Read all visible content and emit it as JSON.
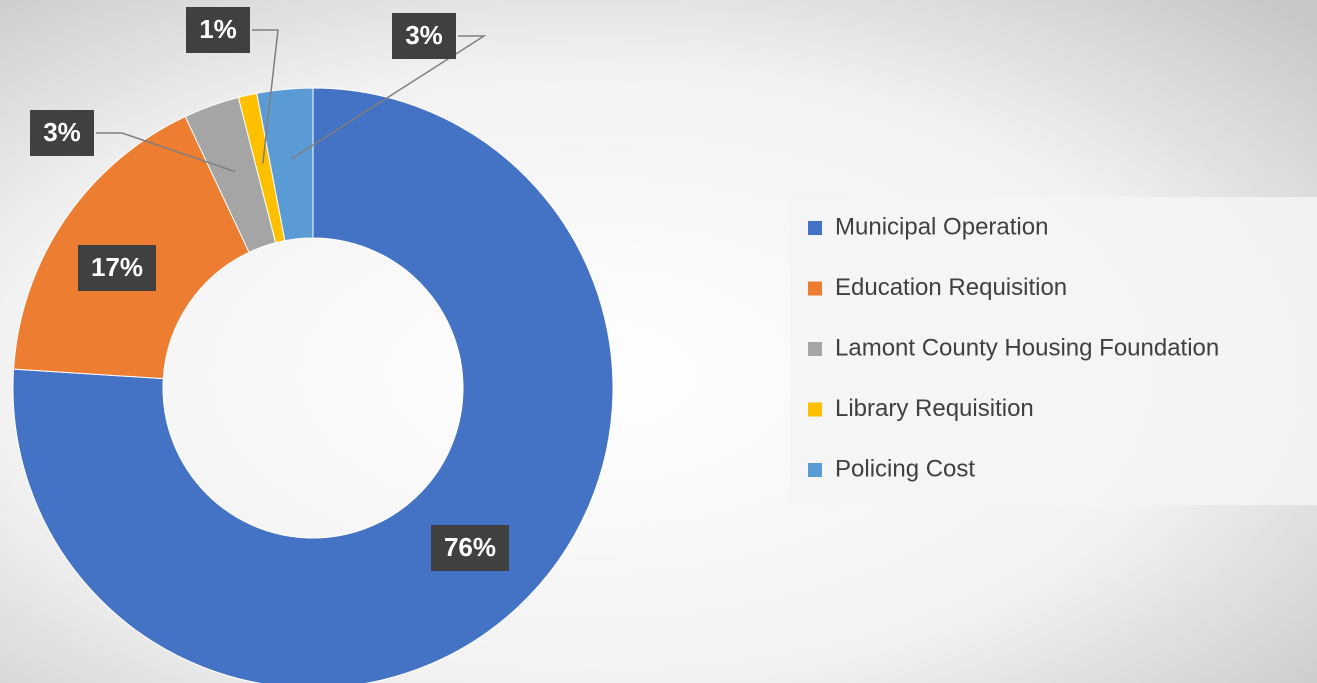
{
  "chart_data": {
    "type": "donut",
    "categories": [
      "Municipal Operation",
      "Education Requisition",
      "Lamont County Housing Foundation",
      "Library Requisition",
      "Policing Cost"
    ],
    "values": [
      76,
      17,
      3,
      1,
      3
    ],
    "value_labels": [
      "76%",
      "17%",
      "3%",
      "1%",
      "3%"
    ],
    "colors": [
      "#4472c4",
      "#ed7d31",
      "#a5a5a5",
      "#ffc000",
      "#5b9bd5"
    ],
    "legend": "right"
  }
}
